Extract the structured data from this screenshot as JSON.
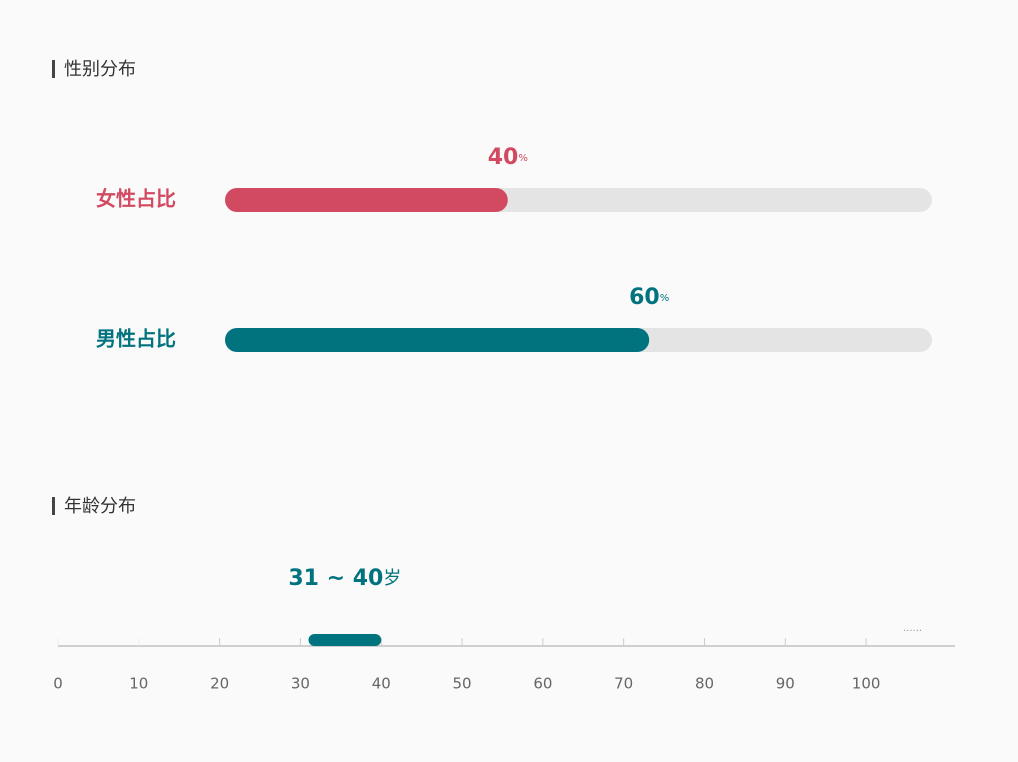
{
  "chart_data": [
    {
      "type": "progress",
      "title": "性别分布",
      "categories": [
        "女性占比",
        "男性占比"
      ],
      "values": [
        40,
        60
      ],
      "value_labels": [
        "40%",
        "60%"
      ],
      "colors": [
        "#d24a62",
        "#00737f"
      ],
      "track_color": "#e4e4e4",
      "xlim": [
        0,
        100
      ]
    },
    {
      "type": "range",
      "title": "年龄分布",
      "low": 31,
      "high": 40,
      "range_label": "31 ~ 40岁",
      "color": "#00737f",
      "xlim": [
        0,
        111
      ],
      "xticks": [
        0,
        10,
        20,
        30,
        40,
        50,
        60,
        70,
        80,
        90,
        100
      ]
    }
  ]
}
